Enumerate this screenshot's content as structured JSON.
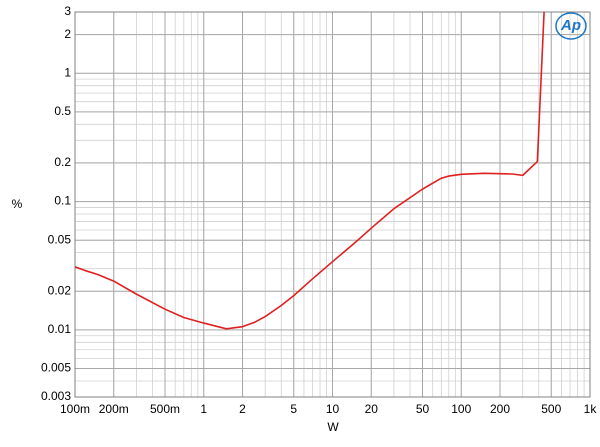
{
  "chart_data": {
    "type": "line",
    "x_label": "W",
    "y_label": "%",
    "logo": "Ap",
    "x": [
      0.1,
      0.12,
      0.15,
      0.2,
      0.3,
      0.5,
      0.7,
      1,
      1.5,
      2,
      2.5,
      3,
      4,
      5,
      7,
      10,
      15,
      20,
      30,
      50,
      70,
      80,
      100,
      150,
      200,
      250,
      300,
      390,
      440
    ],
    "series": [
      {
        "color": "#e02020",
        "values": [
          0.031,
          0.029,
          0.027,
          0.024,
          0.019,
          0.0145,
          0.0125,
          0.0113,
          0.0102,
          0.0106,
          0.0115,
          0.0127,
          0.0155,
          0.0185,
          0.025,
          0.034,
          0.048,
          0.062,
          0.088,
          0.125,
          0.152,
          0.158,
          0.163,
          0.166,
          0.165,
          0.164,
          0.16,
          0.205,
          3
        ]
      }
    ],
    "x_log": true,
    "y_log": true,
    "grid": true,
    "xlim": [
      0.1,
      1000
    ],
    "ylim": [
      0.003,
      3
    ],
    "xticks": [
      {
        "value": 0.1,
        "label": "100m"
      },
      {
        "value": 0.2,
        "label": "200m"
      },
      {
        "value": 0.5,
        "label": "500m"
      },
      1,
      2,
      5,
      10,
      20,
      50,
      100,
      200,
      500,
      {
        "value": 1000,
        "label": "1k"
      }
    ],
    "yticks": [
      3,
      2,
      1,
      0.5,
      0.2,
      0.1,
      0.05,
      0.02,
      0.01,
      0.005,
      0.003
    ]
  }
}
